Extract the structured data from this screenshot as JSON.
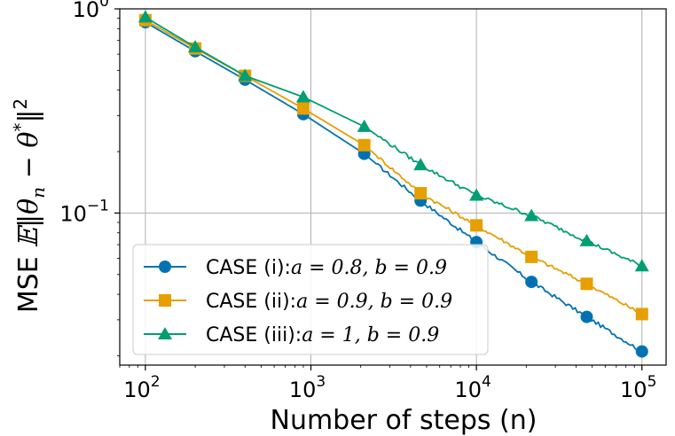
{
  "chart_data": {
    "type": "line",
    "xscale": "log",
    "yscale": "log",
    "xlabel": "Number of steps (n)",
    "ylabel_prefix": "MSE ",
    "ylabel_math": "𝔼‖θ",
    "ylabel_sub": "n",
    "ylabel_mid": " − θ",
    "ylabel_sup1": "*",
    "ylabel_end": "‖",
    "ylabel_sup2": "2",
    "xlim": [
      70,
      140000
    ],
    "ylim": [
      0.018,
      1.0
    ],
    "grid": true,
    "legend_position": "lower-left",
    "x_ticks": [
      {
        "value": 100,
        "base": "10",
        "exp": "2"
      },
      {
        "value": 1000,
        "base": "10",
        "exp": "3"
      },
      {
        "value": 10000,
        "base": "10",
        "exp": "4"
      },
      {
        "value": 100000,
        "base": "10",
        "exp": "5"
      }
    ],
    "y_ticks": [
      {
        "value": 1.0,
        "base": "10",
        "exp": "0"
      },
      {
        "value": 0.1,
        "base": "10",
        "exp": "−1"
      }
    ],
    "series": [
      {
        "name": "CASE (i):",
        "params": "a = 0.8, b = 0.9",
        "color": "#0072B2",
        "marker": "circle",
        "x": [
          100,
          200,
          400,
          900,
          2100,
          4600,
          10000,
          21500,
          46400,
          100000
        ],
        "y": [
          0.86,
          0.62,
          0.45,
          0.305,
          0.195,
          0.115,
          0.072,
          0.046,
          0.031,
          0.021
        ]
      },
      {
        "name": "CASE (ii):",
        "params": "a = 0.9, b = 0.9",
        "color": "#E69F00",
        "marker": "square",
        "x": [
          100,
          200,
          400,
          900,
          2100,
          4600,
          10000,
          21500,
          46400,
          100000
        ],
        "y": [
          0.88,
          0.64,
          0.47,
          0.325,
          0.215,
          0.125,
          0.087,
          0.061,
          0.045,
          0.032
        ]
      },
      {
        "name": "CASE (iii):",
        "params": "a = 1, b = 0.9",
        "color": "#009E73",
        "marker": "triangle",
        "x": [
          100,
          200,
          400,
          900,
          2100,
          4600,
          10000,
          21500,
          46400,
          100000
        ],
        "y": [
          0.91,
          0.65,
          0.47,
          0.37,
          0.265,
          0.172,
          0.122,
          0.097,
          0.073,
          0.055
        ]
      }
    ]
  }
}
